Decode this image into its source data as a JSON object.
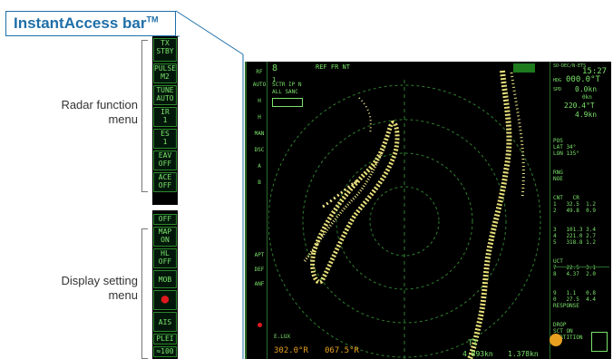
{
  "title": {
    "main": "InstantAccess bar",
    "tm": "TM"
  },
  "labels": {
    "radar": [
      "Radar function",
      "menu"
    ],
    "display": [
      "Display setting",
      "menu"
    ]
  },
  "bar_buttons": [
    {
      "l1": "TX",
      "l2": "STBY"
    },
    {
      "l1": "PULSE",
      "l2": "M2"
    },
    {
      "l1": "TUNE",
      "l2": "AUTO"
    },
    {
      "l1": "IR",
      "l2": "1"
    },
    {
      "l1": "ES",
      "l2": "1"
    },
    {
      "l1": "EAV",
      "l2": "OFF"
    },
    {
      "l1": "ACE",
      "l2": "OFF"
    },
    {
      "l1": "OFF",
      "l2": ""
    },
    {
      "l1": "MAP",
      "l2": "ON"
    },
    {
      "l1": "HL",
      "l2": "OFF"
    },
    {
      "l1": "MOB",
      "l2": ""
    },
    {
      "l1": "●",
      "l2": ""
    },
    {
      "l1": "AIS",
      "l2": ""
    },
    {
      "l1": "PLEI",
      "l2": ""
    },
    {
      "l1": "≈100",
      "l2": ""
    }
  ],
  "radar": {
    "top": {
      "range": "8",
      "ring": "1",
      "mode": "REF FR NT",
      "sub1": "SCTR IP N",
      "sub2": "ALL SANC",
      "ftp": "SO-DEC/N-ETS",
      "time": "15:27",
      "hdg_label": "HDG",
      "hdg": "000.0°T",
      "spd_label": "SPD",
      "spd": "0.0kn",
      "c_kn": "0kn",
      "cog": "220.4°T",
      "sog": "4.9kn"
    },
    "bottom": {
      "vrm": "302.0°R",
      "brg": "067.5°R",
      "tt": "TT",
      "d1": "4.893kn",
      "d2": "1.378kn",
      "elux": "E.LUX"
    },
    "left_readouts": [
      "RF",
      "AUTO",
      "H",
      "H",
      "MAN",
      "DSC",
      "A",
      "B",
      "APT",
      "DEF",
      "ANF"
    ],
    "right_table": [
      "POS",
      "LAT 34°",
      "LON 135°",
      "RNG",
      "",
      "NOE",
      "CNT   CR",
      "1   32.5  1.2",
      "2   49.8  0.9",
      "3   101.3 3.4",
      "4   221.0 2.7",
      "5   318.8 1.2",
      "UCT",
      "7   22.5  3.1",
      "8   4.37  2.0",
      "9   1.1   0.8",
      "0   27.5  4.4",
      "RESPONSE",
      "DROP",
      "SCT ON",
      "PARTITION"
    ]
  }
}
